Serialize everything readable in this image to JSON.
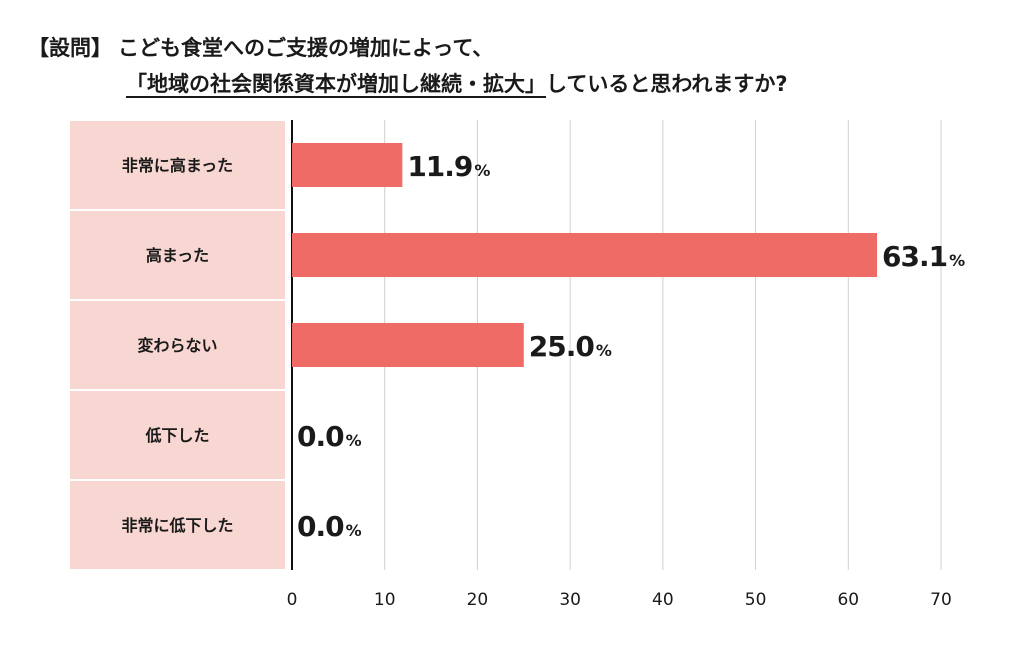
{
  "title": {
    "prefix": "【設問】",
    "line1": "こども食堂へのご支援の増加によって、",
    "quoted": "「地域の社会関係資本が増加し継続・拡大」",
    "line2_rest": "していると思われますか?"
  },
  "colors": {
    "bar": "#ee6b66",
    "category_bg": "#f8d6d1",
    "grid": "#d0d0d0",
    "axis": "#111111"
  },
  "chart_data": {
    "type": "bar",
    "orientation": "horizontal",
    "categories": [
      "非常に高まった",
      "高まった",
      "変わらない",
      "低下した",
      "非常に低下した"
    ],
    "values": [
      11.9,
      63.1,
      25.0,
      0.0,
      0.0
    ],
    "value_labels": [
      "11.9",
      "63.1",
      "25.0",
      "0.0",
      "0.0"
    ],
    "unit": "%",
    "xlim": [
      0,
      70
    ],
    "xticks": [
      0,
      10,
      20,
      30,
      40,
      50,
      60,
      70
    ],
    "grid": true
  }
}
